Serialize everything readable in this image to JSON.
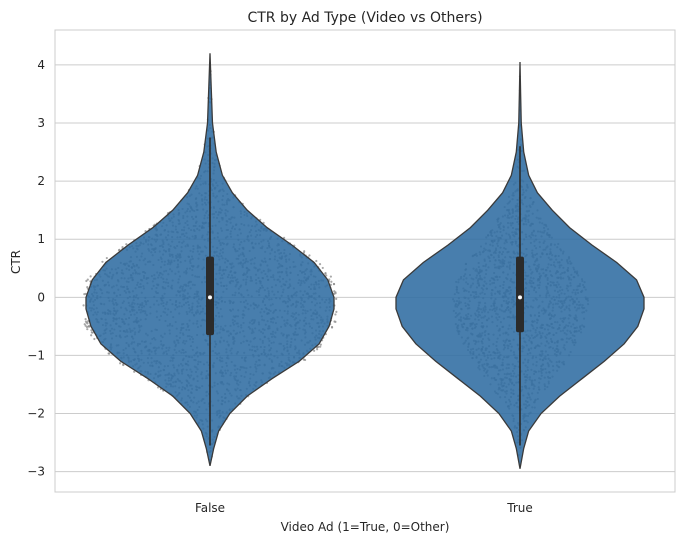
{
  "chart_data": {
    "type": "violin",
    "title": "CTR by Ad Type (Video vs Others)",
    "xlabel": "Video Ad (1=True, 0=Other)",
    "ylabel": "CTR",
    "categories": [
      "False",
      "True"
    ],
    "ylim": [
      -3.35,
      4.6
    ],
    "yticks": [
      -3,
      -2,
      -1,
      0,
      1,
      2,
      3,
      4
    ],
    "ytick_labels": [
      "−3",
      "−2",
      "−1",
      "0",
      "1",
      "2",
      "3",
      "4"
    ],
    "grid": "horizontal",
    "legend": "none",
    "violins": [
      {
        "category": "False",
        "min": -2.9,
        "max": 4.2,
        "median": 0.0,
        "q1": -0.65,
        "q3": 0.7,
        "whisker_low": -2.55,
        "whisker_high": 2.75,
        "density_profile": [
          [
            -2.9,
            0.0
          ],
          [
            -2.6,
            0.03
          ],
          [
            -2.3,
            0.07
          ],
          [
            -2.0,
            0.16
          ],
          [
            -1.7,
            0.3
          ],
          [
            -1.4,
            0.5
          ],
          [
            -1.1,
            0.72
          ],
          [
            -0.8,
            0.88
          ],
          [
            -0.5,
            0.96
          ],
          [
            -0.2,
            1.0
          ],
          [
            0.0,
            1.0
          ],
          [
            0.3,
            0.95
          ],
          [
            0.6,
            0.84
          ],
          [
            0.9,
            0.66
          ],
          [
            1.2,
            0.46
          ],
          [
            1.5,
            0.3
          ],
          [
            1.8,
            0.18
          ],
          [
            2.1,
            0.1
          ],
          [
            2.5,
            0.05
          ],
          [
            3.0,
            0.02
          ],
          [
            3.6,
            0.01
          ],
          [
            4.2,
            0.0
          ]
        ]
      },
      {
        "category": "True",
        "min": -2.95,
        "max": 4.05,
        "median": 0.0,
        "q1": -0.6,
        "q3": 0.7,
        "whisker_low": -2.55,
        "whisker_high": 2.6,
        "density_profile": [
          [
            -2.95,
            0.0
          ],
          [
            -2.6,
            0.03
          ],
          [
            -2.3,
            0.07
          ],
          [
            -2.0,
            0.17
          ],
          [
            -1.7,
            0.32
          ],
          [
            -1.4,
            0.5
          ],
          [
            -1.1,
            0.68
          ],
          [
            -0.8,
            0.84
          ],
          [
            -0.5,
            0.95
          ],
          [
            -0.2,
            1.0
          ],
          [
            0.0,
            1.0
          ],
          [
            0.3,
            0.94
          ],
          [
            0.6,
            0.78
          ],
          [
            0.9,
            0.58
          ],
          [
            1.2,
            0.4
          ],
          [
            1.5,
            0.26
          ],
          [
            1.8,
            0.14
          ],
          [
            2.1,
            0.07
          ],
          [
            2.5,
            0.03
          ],
          [
            3.0,
            0.01
          ],
          [
            3.5,
            0.005
          ],
          [
            4.05,
            0.0
          ]
        ]
      }
    ],
    "colors": {
      "violin_fill": "#2f6ca2",
      "violin_edge": "#3a3a3a",
      "box": "#2b2b2b",
      "median_dot": "#ffffff",
      "swarm_points": "#8c8c8c",
      "grid": "#cccccc",
      "axes_edge": "#cccccc"
    }
  }
}
